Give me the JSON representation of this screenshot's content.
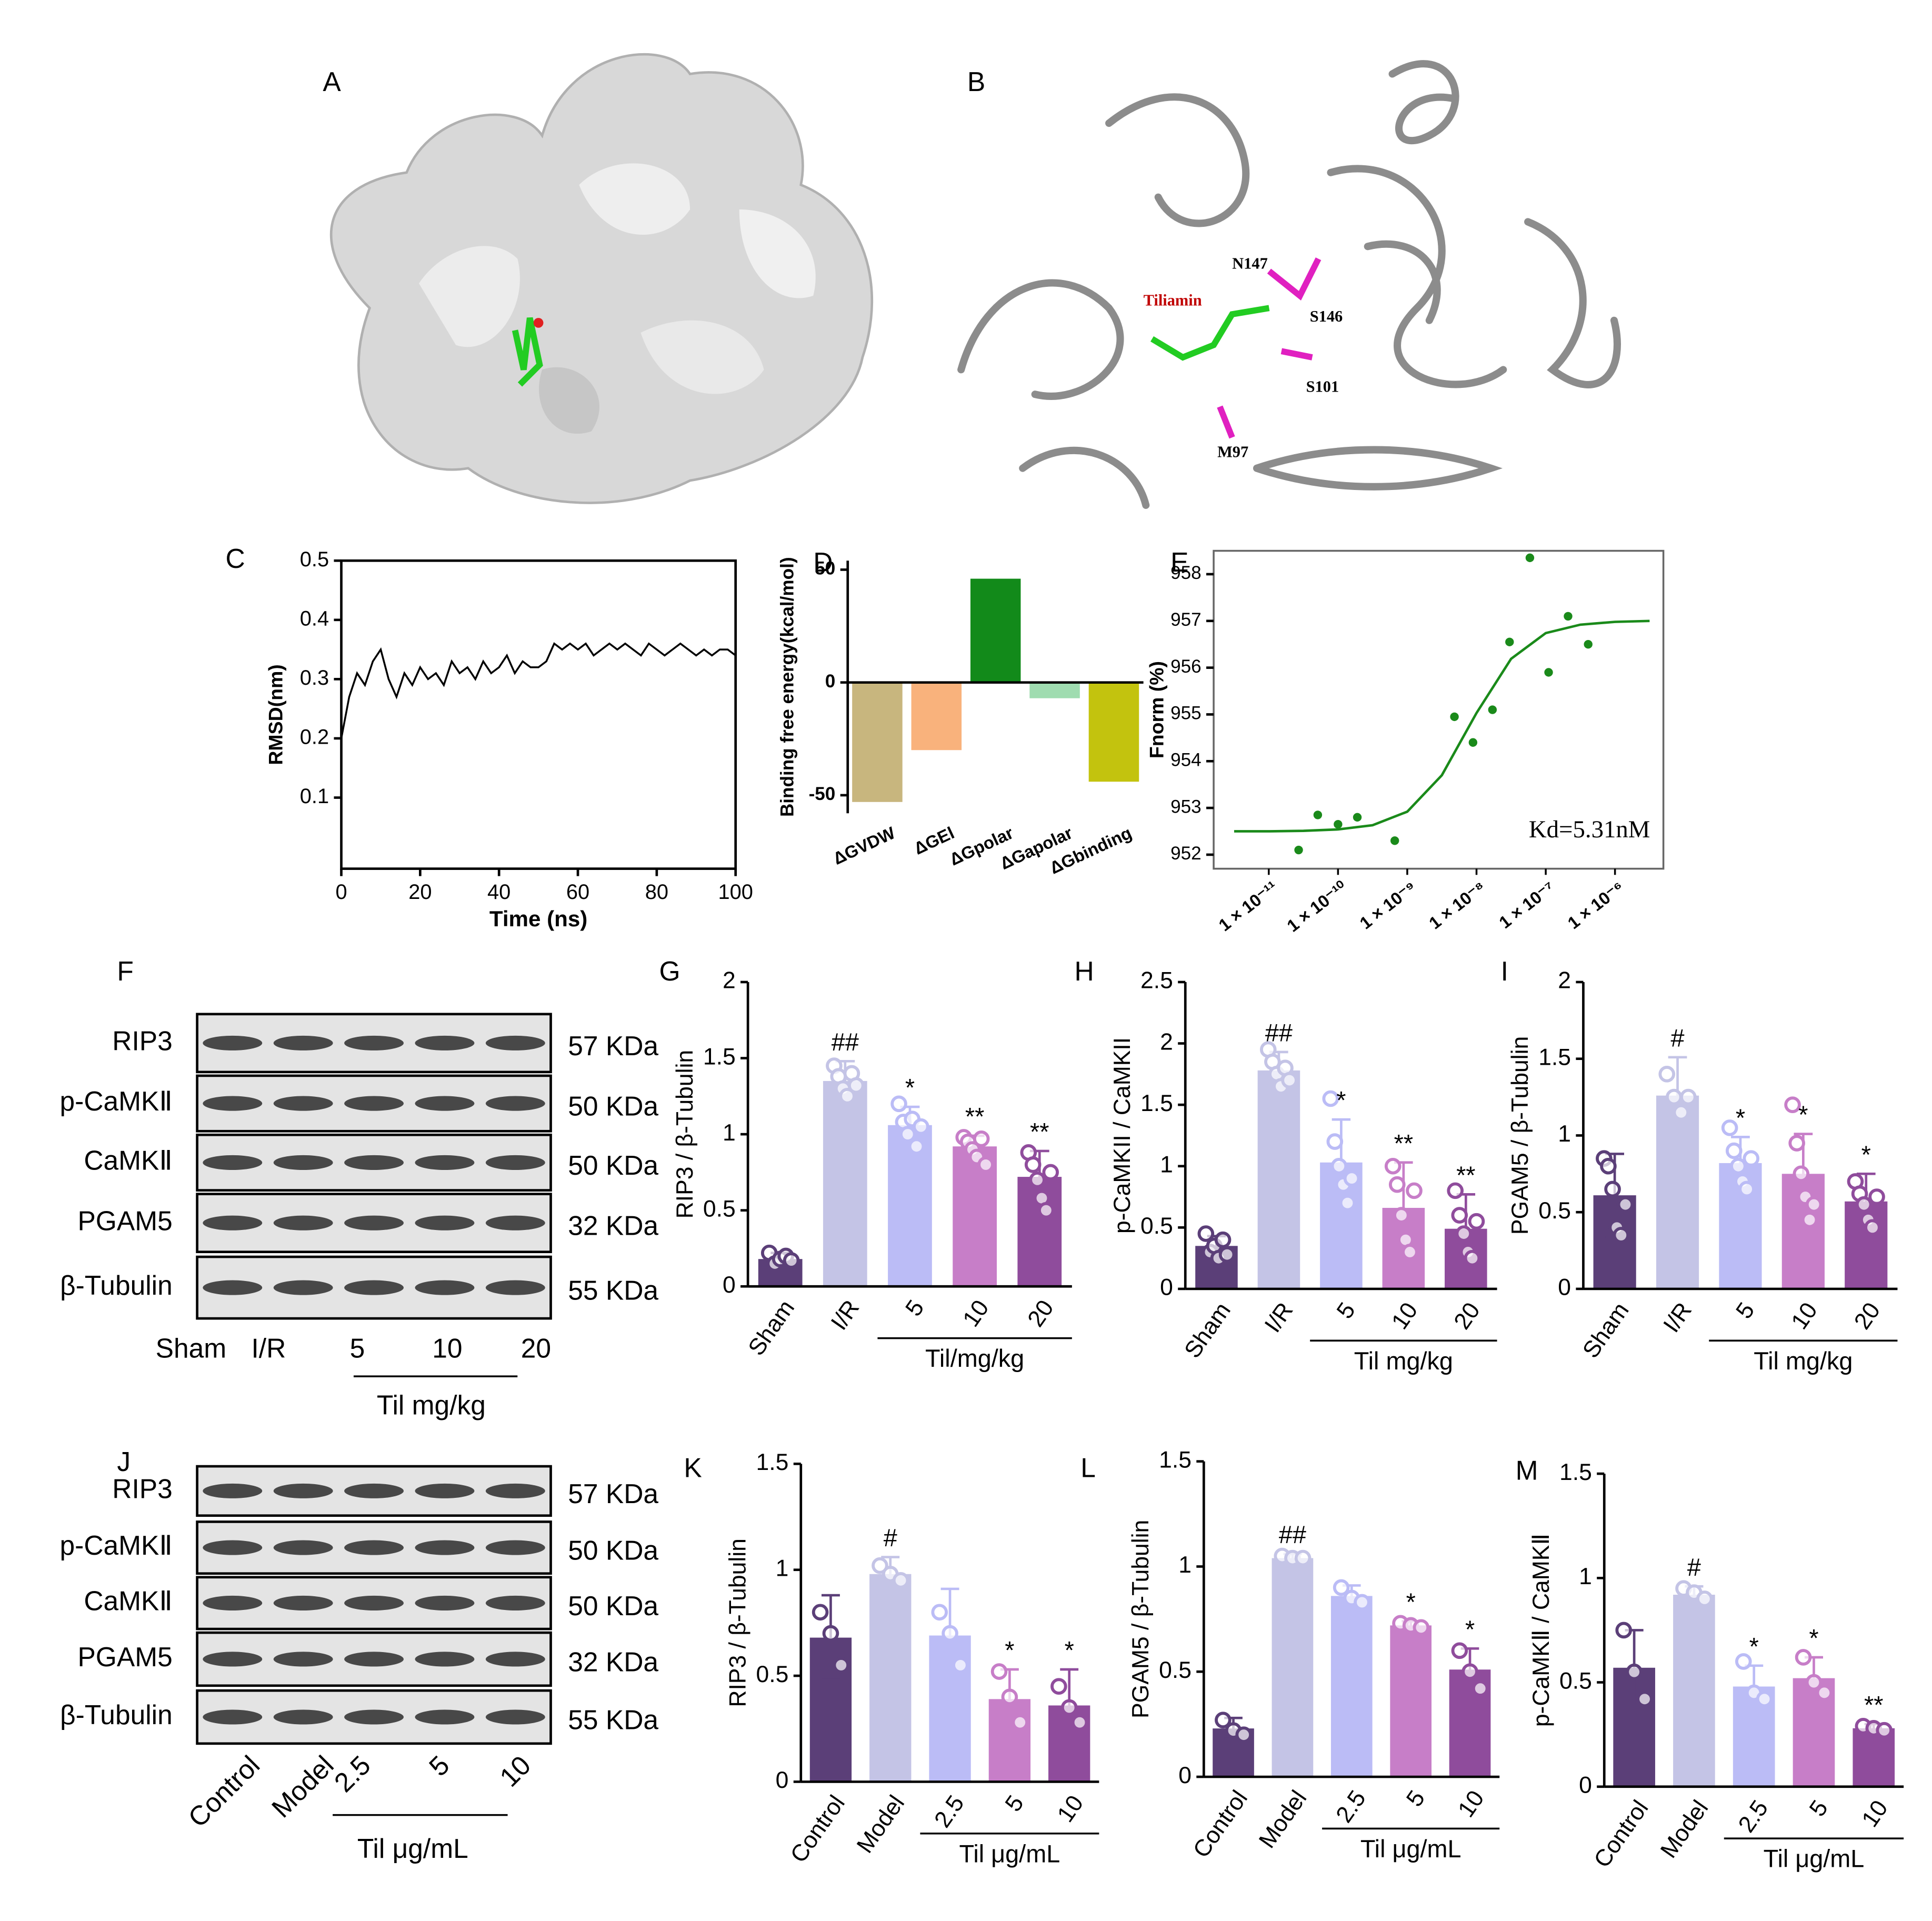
{
  "panel_a": {
    "label": "A"
  },
  "panel_b": {
    "label": "B",
    "annotations": [
      "Tiliamin",
      "N147",
      "S146",
      "S101",
      "M97"
    ]
  },
  "panel_f": {
    "label": "F",
    "rows": [
      "RIP3",
      "p-CaMKⅡ",
      "CaMKⅡ",
      "PGAM5",
      "β-Tubulin"
    ],
    "sizes": [
      "57 KDa",
      "50 KDa",
      "50 KDa",
      "32 KDa",
      "55 KDa"
    ],
    "lanes": [
      "Sham",
      "I/R",
      "5",
      "10",
      "20"
    ],
    "group_label": "Til mg/kg"
  },
  "panel_j": {
    "label": "J",
    "rows": [
      "RIP3",
      "p-CaMKⅡ",
      "CaMKⅡ",
      "PGAM5",
      "β-Tubulin"
    ],
    "sizes": [
      "57 KDa",
      "50 KDa",
      "50 KDa",
      "32 KDa",
      "55 KDa"
    ],
    "lanes": [
      "Control",
      "Model",
      "2.5",
      "5",
      "10"
    ],
    "group_label": "Til μg/mL"
  },
  "chart_data": [
    {
      "type": "line",
      "panel": "C",
      "x_label": "Time (ns)",
      "y_label": "RMSD(nm)",
      "color": "#000000",
      "x": [
        0,
        2,
        4,
        6,
        8,
        10,
        12,
        14,
        16,
        18,
        20,
        22,
        24,
        26,
        28,
        30,
        32,
        34,
        36,
        38,
        40,
        42,
        44,
        46,
        48,
        50,
        52,
        54,
        56,
        58,
        60,
        62,
        64,
        66,
        68,
        70,
        72,
        74,
        76,
        78,
        80,
        82,
        84,
        86,
        88,
        90,
        92,
        94,
        96,
        98,
        100
      ],
      "values": [
        0.2,
        0.27,
        0.31,
        0.29,
        0.33,
        0.35,
        0.3,
        0.27,
        0.31,
        0.29,
        0.32,
        0.3,
        0.31,
        0.29,
        0.33,
        0.31,
        0.32,
        0.3,
        0.33,
        0.31,
        0.32,
        0.34,
        0.31,
        0.33,
        0.32,
        0.32,
        0.33,
        0.36,
        0.35,
        0.36,
        0.35,
        0.36,
        0.34,
        0.35,
        0.36,
        0.35,
        0.36,
        0.35,
        0.34,
        0.36,
        0.35,
        0.34,
        0.35,
        0.36,
        0.35,
        0.34,
        0.35,
        0.34,
        0.35,
        0.35,
        0.34
      ],
      "xlim": [
        0,
        100
      ],
      "xticks": [
        0,
        20,
        40,
        60,
        80,
        100
      ],
      "ylim": [
        -0.02,
        0.5
      ],
      "yticks": [
        0.1,
        0.2,
        0.3,
        0.4,
        0.5
      ]
    },
    {
      "type": "bar",
      "panel": "D",
      "y_label": "Binding free energy(kcal/mol)",
      "categories": [
        "ΔGVDW",
        "ΔGEl",
        "ΔGpolar",
        "ΔGapolar",
        "ΔGbinding"
      ],
      "values": [
        -53,
        -30,
        46,
        -7,
        -44
      ],
      "colors": [
        "#c8b67e",
        "#f9b27c",
        "#128a1a",
        "#9fdcb0",
        "#c3c30e"
      ],
      "ylim": [
        -58,
        54
      ],
      "yticks": [
        -50,
        0,
        50
      ]
    },
    {
      "type": "scatter",
      "panel": "E",
      "y_label": "Fnorm (%)",
      "annotation": "Kd=5.31nM",
      "color": "#1a8a1a",
      "log_x": true,
      "x": [
        2.7e-11,
        5.1e-11,
        1e-10,
        1.9e-10,
        6.6e-10,
        4.8e-09,
        8.9e-09,
        1.7e-08,
        3e-08,
        5.9e-08,
        1.1e-07,
        2.1e-07,
        4.1e-07
      ],
      "values": [
        952.1,
        952.85,
        952.65,
        952.8,
        952.3,
        954.95,
        954.4,
        955.1,
        956.55,
        958.35,
        955.9,
        957.1,
        956.5
      ],
      "fit": {
        "x": [
          3.16e-12,
          1e-11,
          3.16e-11,
          1e-10,
          3.16e-10,
          1e-09,
          3.16e-09,
          1e-08,
          3.16e-08,
          1e-07,
          3.16e-07,
          1e-06,
          3.16e-06
        ],
        "values": [
          952.5,
          952.5,
          952.51,
          952.54,
          952.63,
          952.92,
          953.7,
          955.03,
          956.19,
          956.74,
          956.92,
          956.98,
          957.0
        ]
      },
      "xlim": [
        1.6e-12,
        5e-06
      ],
      "xticks": [
        {
          "value": 1e-11,
          "label": "1 × 10⁻¹¹"
        },
        {
          "value": 1e-10,
          "label": "1 × 10⁻¹⁰"
        },
        {
          "value": 1e-09,
          "label": "1 × 10⁻⁹"
        },
        {
          "value": 1e-08,
          "label": "1 × 10⁻⁸"
        },
        {
          "value": 1e-07,
          "label": "1 × 10⁻⁷"
        },
        {
          "value": 1e-06,
          "label": "1 × 10⁻⁶"
        }
      ],
      "ylim": [
        951.7,
        958.5
      ],
      "yticks": [
        952,
        953,
        954,
        955,
        956,
        957,
        958
      ]
    },
    {
      "type": "bar",
      "panel": "G",
      "y_label": "RIP3 / β-Tubulin",
      "group_label": "Til/mg/kg",
      "categories": [
        "Sham",
        "I/R",
        "5",
        "10",
        "20"
      ],
      "values": [
        0.18,
        1.35,
        1.06,
        0.92,
        0.72
      ],
      "errors": [
        0.04,
        0.13,
        0.12,
        0.07,
        0.17
      ],
      "annotations": [
        null,
        "##",
        "*",
        "**",
        "**"
      ],
      "points": [
        [
          0.22,
          0.15,
          0.18,
          0.2,
          0.17
        ],
        [
          1.45,
          1.38,
          1.3,
          1.25,
          1.4,
          1.32
        ],
        [
          1.2,
          1.08,
          1.0,
          1.1,
          0.92,
          1.05
        ],
        [
          0.98,
          0.95,
          0.9,
          0.85,
          0.97,
          0.8
        ],
        [
          0.88,
          0.8,
          0.7,
          0.58,
          0.5,
          0.75
        ]
      ],
      "colors": [
        "#5b3f78",
        "#c4c4e6",
        "#bbbcf6",
        "#c77ec8",
        "#8f4c9c"
      ],
      "ylim": [
        0,
        2
      ],
      "yticks": [
        0,
        0.5,
        1,
        1.5,
        2
      ]
    },
    {
      "type": "bar",
      "panel": "H",
      "y_label": "p-CaMKII / CaMKII",
      "group_label": "Til mg/kg",
      "categories": [
        "Sham",
        "I/R",
        "5",
        "10",
        "20"
      ],
      "values": [
        0.35,
        1.78,
        1.03,
        0.66,
        0.49
      ],
      "errors": [
        0.08,
        0.15,
        0.35,
        0.37,
        0.28
      ],
      "annotations": [
        null,
        "##",
        "*",
        "**",
        "**"
      ],
      "points": [
        [
          0.45,
          0.3,
          0.35,
          0.25,
          0.4,
          0.28
        ],
        [
          1.95,
          1.85,
          1.75,
          1.65,
          1.8,
          1.7
        ],
        [
          1.55,
          1.2,
          1.0,
          0.85,
          0.7,
          0.9
        ],
        [
          1.0,
          0.85,
          0.6,
          0.4,
          0.3,
          0.8
        ],
        [
          0.8,
          0.6,
          0.45,
          0.3,
          0.25,
          0.55
        ]
      ],
      "colors": [
        "#5b3f78",
        "#c4c4e6",
        "#bbbcf6",
        "#c77ec8",
        "#8f4c9c"
      ],
      "ylim": [
        0,
        2.5
      ],
      "yticks": [
        0,
        0.5,
        1,
        1.5,
        2,
        2.5
      ]
    },
    {
      "type": "bar",
      "panel": "I",
      "y_label": "PGAM5 / β-Tubulin",
      "group_label": "Til mg/kg",
      "categories": [
        "Sham",
        "I/R",
        "5",
        "10",
        "20"
      ],
      "values": [
        0.61,
        1.26,
        0.82,
        0.75,
        0.57
      ],
      "errors": [
        0.27,
        0.25,
        0.17,
        0.26,
        0.18
      ],
      "annotations": [
        null,
        "#",
        "*",
        "*",
        "*"
      ],
      "points": [
        [
          0.85,
          0.8,
          0.65,
          0.4,
          0.35,
          0.55
        ],
        [
          1.4,
          1.25,
          1.15,
          1.25
        ],
        [
          1.05,
          0.9,
          0.8,
          0.7,
          0.65,
          0.85
        ],
        [
          1.2,
          0.95,
          0.75,
          0.6,
          0.45,
          0.55
        ],
        [
          0.7,
          0.62,
          0.55,
          0.45,
          0.4,
          0.6
        ]
      ],
      "colors": [
        "#5b3f78",
        "#c4c4e6",
        "#bbbcf6",
        "#c77ec8",
        "#8f4c9c"
      ],
      "ylim": [
        0,
        2
      ],
      "yticks": [
        0,
        0.5,
        1,
        1.5,
        2
      ]
    },
    {
      "type": "bar",
      "panel": "K",
      "y_label": "RIP3 / β-Tubulin",
      "group_label": "Til μg/mL",
      "categories": [
        "Control",
        "Model",
        "2.5",
        "5",
        "10"
      ],
      "values": [
        0.68,
        0.98,
        0.69,
        0.39,
        0.36
      ],
      "errors": [
        0.2,
        0.08,
        0.22,
        0.14,
        0.17
      ],
      "annotations": [
        null,
        "#",
        null,
        "*",
        "*"
      ],
      "points": [
        [
          0.8,
          0.7,
          0.55
        ],
        [
          1.02,
          0.98,
          0.95
        ],
        [
          0.8,
          0.7,
          0.55
        ],
        [
          0.52,
          0.4,
          0.28
        ],
        [
          0.45,
          0.35,
          0.28
        ]
      ],
      "colors": [
        "#5b3f78",
        "#c4c4e6",
        "#bbbcf6",
        "#c77ec8",
        "#8f4c9c"
      ],
      "ylim": [
        0,
        1.5
      ],
      "yticks": [
        0,
        0.5,
        1,
        1.5
      ]
    },
    {
      "type": "bar",
      "panel": "L",
      "y_label": "PGAM5 / β-Tubulin",
      "group_label": "Til μg/mL",
      "categories": [
        "Control",
        "Model",
        "2.5",
        "5",
        "10"
      ],
      "values": [
        0.23,
        1.04,
        0.86,
        0.72,
        0.51
      ],
      "errors": [
        0.05,
        0.02,
        0.05,
        0.02,
        0.1
      ],
      "annotations": [
        null,
        "##",
        null,
        "*",
        "*"
      ],
      "points": [
        [
          0.27,
          0.22,
          0.2
        ],
        [
          1.05,
          1.04,
          1.04
        ],
        [
          0.9,
          0.85,
          0.83
        ],
        [
          0.73,
          0.72,
          0.71
        ],
        [
          0.6,
          0.5,
          0.42
        ]
      ],
      "colors": [
        "#5b3f78",
        "#c4c4e6",
        "#bbbcf6",
        "#c77ec8",
        "#8f4c9c"
      ],
      "ylim": [
        0,
        1.5
      ],
      "yticks": [
        0,
        0.5,
        1,
        1.5
      ]
    },
    {
      "type": "bar",
      "panel": "M",
      "y_label": "p-CaMKⅡ / CaMKⅡ",
      "group_label": "Til μg/mL",
      "categories": [
        "Control",
        "Model",
        "2.5",
        "5",
        "10"
      ],
      "values": [
        0.57,
        0.92,
        0.48,
        0.52,
        0.28
      ],
      "errors": [
        0.18,
        0.04,
        0.1,
        0.1,
        0.02
      ],
      "annotations": [
        null,
        "#",
        "*",
        "*",
        "**"
      ],
      "points": [
        [
          0.75,
          0.55,
          0.42
        ],
        [
          0.95,
          0.93,
          0.9
        ],
        [
          0.6,
          0.45,
          0.42
        ],
        [
          0.62,
          0.5,
          0.45
        ],
        [
          0.29,
          0.28,
          0.27
        ]
      ],
      "colors": [
        "#5b3f78",
        "#c4c4e6",
        "#bbbcf6",
        "#c77ec8",
        "#8f4c9c"
      ],
      "ylim": [
        0,
        1.5
      ],
      "yticks": [
        0,
        0.5,
        1,
        1.5
      ]
    }
  ]
}
